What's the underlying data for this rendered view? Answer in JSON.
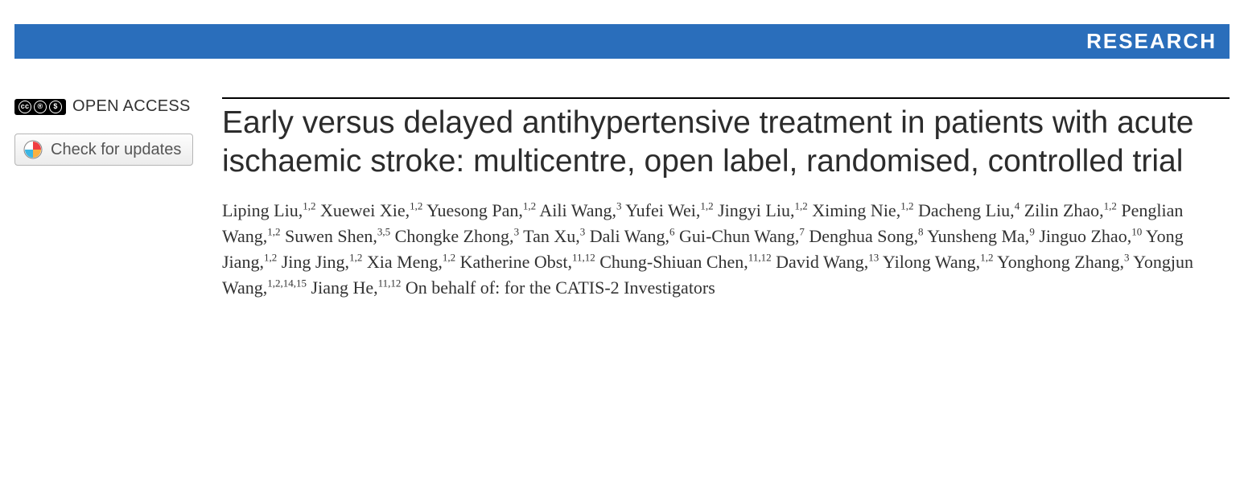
{
  "banner": {
    "label": "RESEARCH",
    "bg_color": "#2a6ebb",
    "text_color": "#ffffff"
  },
  "sidebar": {
    "open_access_label": "OPEN ACCESS",
    "cc_icon_name": "cc-by-nc-icon",
    "updates_button_label": "Check for updates",
    "crossmark_icon_name": "crossmark-icon"
  },
  "article": {
    "title": "Early versus delayed antihypertensive treatment in patients with acute ischaemic stroke: multicentre, open label, randomised, controlled trial",
    "authors": [
      {
        "name": "Liping Liu",
        "aff": "1,2"
      },
      {
        "name": "Xuewei Xie",
        "aff": "1,2"
      },
      {
        "name": "Yuesong Pan",
        "aff": "1,2"
      },
      {
        "name": "Aili Wang",
        "aff": "3"
      },
      {
        "name": "Yufei Wei",
        "aff": "1,2"
      },
      {
        "name": "Jingyi Liu",
        "aff": "1,2"
      },
      {
        "name": "Ximing Nie",
        "aff": "1,2"
      },
      {
        "name": "Dacheng Liu",
        "aff": "4"
      },
      {
        "name": "Zilin Zhao",
        "aff": "1,2"
      },
      {
        "name": "Penglian Wang",
        "aff": "1,2"
      },
      {
        "name": "Suwen Shen",
        "aff": "3,5"
      },
      {
        "name": "Chongke Zhong",
        "aff": "3"
      },
      {
        "name": "Tan Xu",
        "aff": "3"
      },
      {
        "name": "Dali Wang",
        "aff": "6"
      },
      {
        "name": "Gui-Chun Wang",
        "aff": "7"
      },
      {
        "name": "Denghua Song",
        "aff": "8"
      },
      {
        "name": "Yunsheng Ma",
        "aff": "9"
      },
      {
        "name": "Jinguo Zhao",
        "aff": "10"
      },
      {
        "name": "Yong Jiang",
        "aff": "1,2"
      },
      {
        "name": "Jing Jing",
        "aff": "1,2"
      },
      {
        "name": "Xia Meng",
        "aff": "1,2"
      },
      {
        "name": "Katherine Obst",
        "aff": "11,12"
      },
      {
        "name": "Chung-Shiuan Chen",
        "aff": "11,12"
      },
      {
        "name": "David Wang",
        "aff": "13"
      },
      {
        "name": "Yilong Wang",
        "aff": "1,2"
      },
      {
        "name": "Yonghong Zhang",
        "aff": "3"
      },
      {
        "name": "Yongjun Wang",
        "aff": "1,2,14,15"
      },
      {
        "name": "Jiang He",
        "aff": "11,12"
      }
    ],
    "on_behalf": "On behalf of: for the CATIS-2 Investigators"
  },
  "style": {
    "title_fontsize": 39,
    "author_fontsize": 22,
    "title_color": "#2c2c2c",
    "body_color": "#323232",
    "rule_color": "#000000"
  }
}
